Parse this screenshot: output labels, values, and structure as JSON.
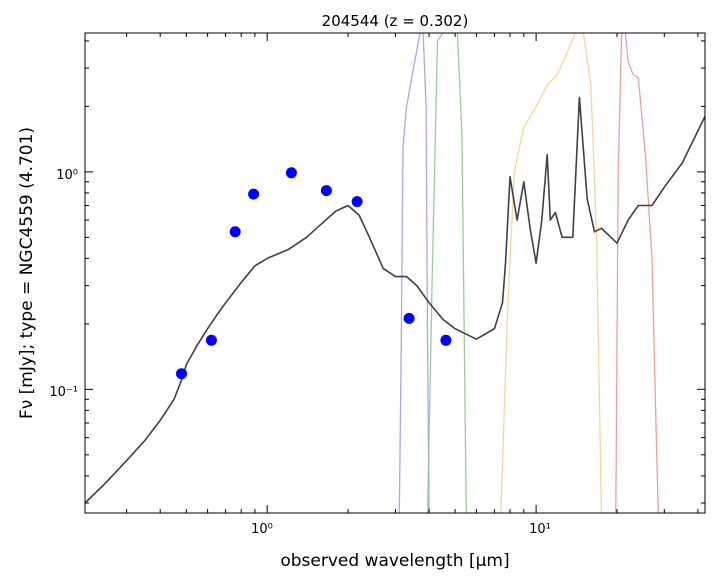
{
  "chart_data": {
    "type": "scatter",
    "title": "204544 (z = 0.302)",
    "xlabel": "observed wavelength [μm]",
    "ylabel": "Fν [mJy];  type = NGC4559 (4.701)",
    "xscale": "log",
    "yscale": "log",
    "xlim": [
      0.21,
      42.5
    ],
    "ylim": [
      0.027,
      4.35
    ],
    "xtick_labels": [
      "10⁰",
      "10¹"
    ],
    "ytick_labels": [
      "10⁰",
      "10⁻¹"
    ],
    "grid": false,
    "colors": {
      "points": "#0000ff",
      "template": "#404040",
      "filter_irac1": "#9999ee",
      "filter_irac2": "#88c488",
      "filter_mips_a": "#f5d08a",
      "filter_mips_b": "#f08c8c"
    },
    "series": [
      {
        "kind": "points",
        "x": [
          0.48,
          0.62,
          0.76,
          0.89,
          1.23,
          1.66,
          2.16,
          3.37,
          4.62
        ],
        "y": [
          0.118,
          0.168,
          0.53,
          0.79,
          0.99,
          0.82,
          0.73,
          0.212,
          0.168
        ]
      },
      {
        "kind": "template",
        "x": [
          0.21,
          0.25,
          0.3,
          0.35,
          0.4,
          0.45,
          0.48,
          0.5,
          0.55,
          0.6,
          0.65,
          0.7,
          0.8,
          0.9,
          1.0,
          1.2,
          1.4,
          1.6,
          1.8,
          2.0,
          2.2,
          2.4,
          2.7,
          3.0,
          3.3,
          3.6,
          4.0,
          4.5,
          5.0,
          6.0,
          7.0,
          7.5,
          7.7,
          8.0,
          8.5,
          9.0,
          9.5,
          10.0,
          10.5,
          11.0,
          11.3,
          11.8,
          12.5,
          13.0,
          13.7,
          14.5,
          15.5,
          16.5,
          17.5,
          19.0,
          20.0,
          22.0,
          24.0,
          27.0,
          30.0,
          35.0,
          42.5
        ],
        "y": [
          0.03,
          0.037,
          0.047,
          0.058,
          0.072,
          0.09,
          0.11,
          0.13,
          0.16,
          0.19,
          0.22,
          0.25,
          0.31,
          0.37,
          0.4,
          0.44,
          0.5,
          0.58,
          0.66,
          0.7,
          0.63,
          0.5,
          0.36,
          0.33,
          0.33,
          0.3,
          0.25,
          0.21,
          0.19,
          0.17,
          0.19,
          0.25,
          0.38,
          0.95,
          0.6,
          0.9,
          0.55,
          0.38,
          0.6,
          1.2,
          0.6,
          0.65,
          0.5,
          0.5,
          0.5,
          2.2,
          0.75,
          0.53,
          0.55,
          0.5,
          0.47,
          0.6,
          0.7,
          0.7,
          0.85,
          1.1,
          1.8
        ]
      },
      {
        "kind": "filter",
        "color": "filter_irac1",
        "x": [
          3.1,
          3.15,
          3.2,
          3.3,
          3.5,
          3.7,
          3.8,
          3.9,
          3.95,
          4.0
        ],
        "y": [
          0.027,
          0.15,
          1.3,
          2.0,
          3.0,
          4.35,
          4.35,
          2.0,
          0.15,
          0.027
        ]
      },
      {
        "kind": "filter",
        "color": "filter_irac2",
        "x": [
          3.95,
          4.1,
          4.3,
          4.5,
          4.7,
          4.9,
          5.1,
          5.3,
          5.4,
          5.5
        ],
        "y": [
          0.027,
          0.3,
          4.0,
          4.35,
          4.35,
          4.35,
          4.35,
          1.5,
          0.2,
          0.027
        ]
      },
      {
        "kind": "filter",
        "color": "filter_mips_a",
        "x": [
          7.4,
          7.8,
          8.3,
          9.0,
          10.0,
          11.0,
          12.0,
          13.0,
          14.0,
          15.0,
          16.0,
          16.8,
          17.5
        ],
        "y": [
          0.027,
          0.2,
          1.0,
          1.6,
          2.0,
          2.5,
          2.8,
          3.5,
          4.35,
          4.35,
          2.5,
          0.5,
          0.027
        ]
      },
      {
        "kind": "filter",
        "color": "filter_mips_b",
        "x": [
          19.8,
          20.2,
          20.8,
          21.5,
          22.0,
          23.0,
          24.0,
          25.5,
          27.0,
          28.0,
          28.5
        ],
        "y": [
          0.027,
          1.0,
          4.35,
          4.35,
          3.2,
          2.8,
          2.7,
          1.2,
          0.4,
          0.06,
          0.027
        ]
      }
    ]
  }
}
